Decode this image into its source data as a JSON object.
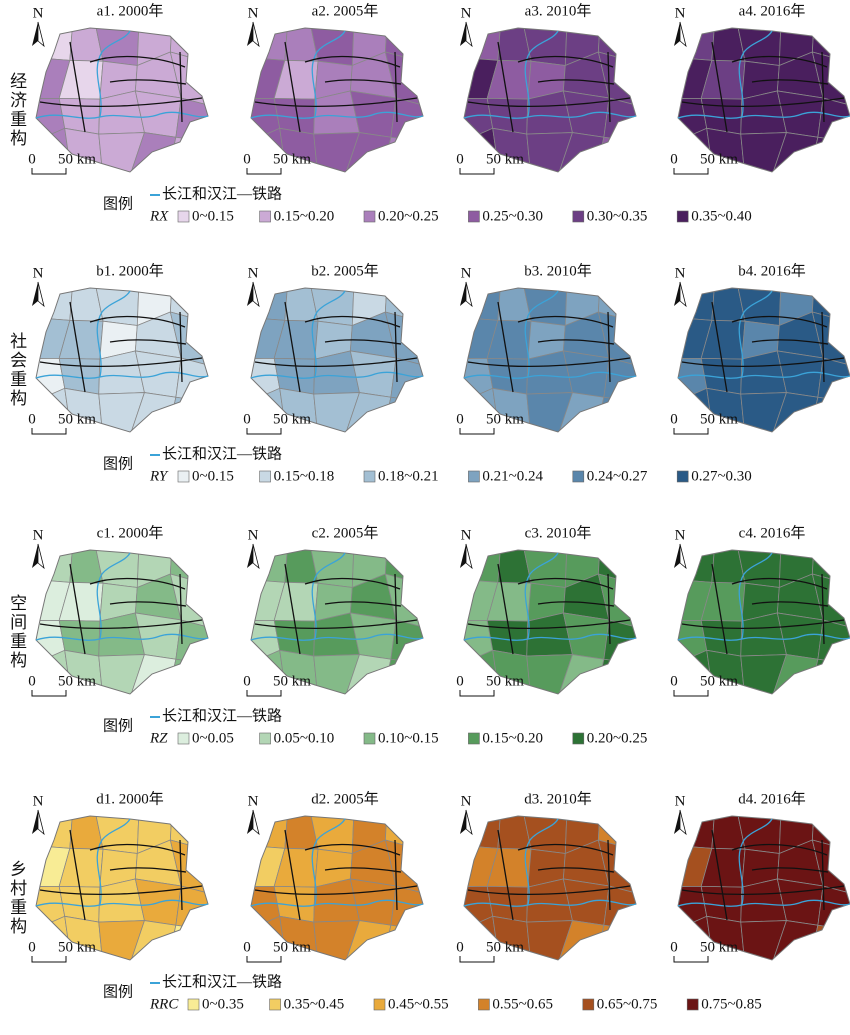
{
  "north": "N",
  "scale": {
    "zero": "0",
    "distance": "50 km"
  },
  "legend_title": "图例",
  "line_label": "长江和汉江—铁路",
  "rows": [
    {
      "label": "经济重构",
      "panels": [
        "a1. 2000年",
        "a2. 2005年",
        "a3. 2010年",
        "a4. 2016年"
      ],
      "variable": "RX",
      "items": [
        {
          "label": "0~0.15",
          "color": "#e7d6eb"
        },
        {
          "label": "0.15~0.20",
          "color": "#cbaad5"
        },
        {
          "label": "0.20~0.25",
          "color": "#aa7fbb"
        },
        {
          "label": "0.25~0.30",
          "color": "#8e5ca1"
        },
        {
          "label": "0.30~0.35",
          "color": "#6c3f84"
        },
        {
          "label": "0.35~0.40",
          "color": "#4a1f5e"
        }
      ]
    },
    {
      "label": "社会重构",
      "panels": [
        "b1. 2000年",
        "b2. 2005年",
        "b3. 2010年",
        "b4. 2016年"
      ],
      "variable": "RY",
      "items": [
        {
          "label": "0~0.15",
          "color": "#eaf0f3"
        },
        {
          "label": "0.15~0.18",
          "color": "#c9d9e4"
        },
        {
          "label": "0.18~0.21",
          "color": "#a3bfd3"
        },
        {
          "label": "0.21~0.24",
          "color": "#7ea3c0"
        },
        {
          "label": "0.24~0.27",
          "color": "#5a86ab"
        },
        {
          "label": "0.27~0.30",
          "color": "#2a5a86"
        }
      ]
    },
    {
      "label": "空间重构",
      "panels": [
        "c1. 2000年",
        "c2. 2005年",
        "c3. 2010年",
        "c4. 2016年"
      ],
      "variable": "RZ",
      "items": [
        {
          "label": "0~0.05",
          "color": "#dceede"
        },
        {
          "label": "0.05~0.10",
          "color": "#b3d6b5"
        },
        {
          "label": "0.10~0.15",
          "color": "#84ba88"
        },
        {
          "label": "0.15~0.20",
          "color": "#579b5c"
        },
        {
          "label": "0.20~0.25",
          "color": "#2d7235"
        }
      ]
    },
    {
      "label": "乡村重构",
      "panels": [
        "d1. 2000年",
        "d2. 2005年",
        "d3. 2010年",
        "d4. 2016年"
      ],
      "variable": "RRC",
      "items": [
        {
          "label": "0~0.35",
          "color": "#f8ec95"
        },
        {
          "label": "0.35~0.45",
          "color": "#f2cd62"
        },
        {
          "label": "0.45~0.55",
          "color": "#e9aa3c"
        },
        {
          "label": "0.55~0.65",
          "color": "#d3822a"
        },
        {
          "label": "0.65~0.75",
          "color": "#a5501f"
        },
        {
          "label": "0.75~0.85",
          "color": "#6b1414"
        }
      ]
    }
  ]
}
